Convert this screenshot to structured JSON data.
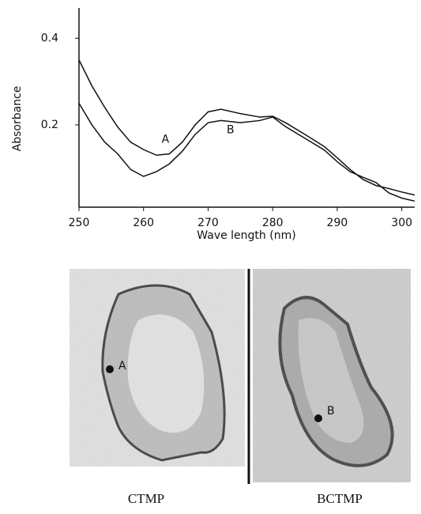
{
  "chart_data": {
    "type": "line",
    "x_label": "Wave length (nm)",
    "y_label": "Absorbance",
    "x": [
      250,
      252,
      254,
      256,
      258,
      260,
      262,
      264,
      266,
      268,
      270,
      272,
      275,
      278,
      280,
      282,
      285,
      288,
      290,
      292,
      294,
      296,
      298,
      300,
      302
    ],
    "series": [
      {
        "name": "A",
        "color": "#111111",
        "values": [
          0.35,
          0.29,
          0.24,
          0.195,
          0.16,
          0.143,
          0.13,
          0.133,
          0.16,
          0.2,
          0.23,
          0.236,
          0.226,
          0.218,
          0.22,
          0.205,
          0.178,
          0.15,
          0.124,
          0.097,
          0.074,
          0.06,
          0.053,
          0.045,
          0.038
        ]
      },
      {
        "name": "B",
        "color": "#111111",
        "values": [
          0.25,
          0.2,
          0.16,
          0.133,
          0.097,
          0.081,
          0.092,
          0.11,
          0.139,
          0.178,
          0.205,
          0.21,
          0.205,
          0.21,
          0.218,
          0.196,
          0.169,
          0.142,
          0.115,
          0.092,
          0.079,
          0.067,
          0.043,
          0.031,
          0.024
        ]
      }
    ],
    "xlim": [
      250,
      302
    ],
    "ylim": [
      0.01,
      0.47
    ],
    "xticks": [
      250,
      260,
      270,
      280,
      290,
      300
    ],
    "yticks": [
      0.2,
      0.4
    ]
  },
  "images": [
    {
      "label": "CTMP",
      "marker": "A"
    },
    {
      "label": "BCTMP",
      "marker": "B"
    }
  ]
}
